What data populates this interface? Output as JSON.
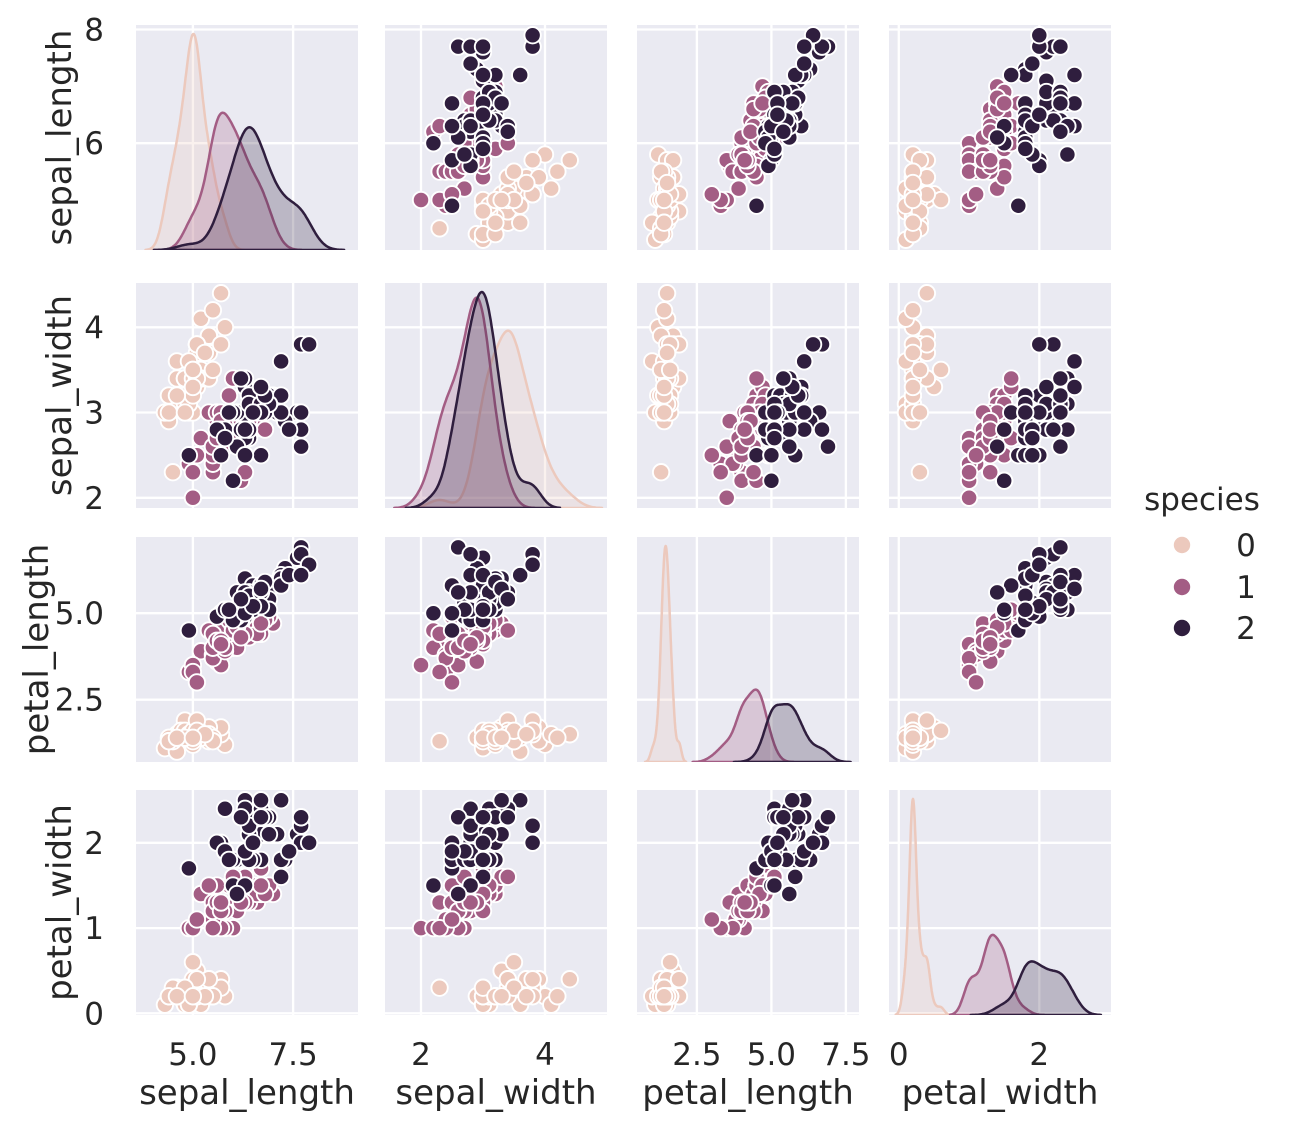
{
  "figure": {
    "description": "Seaborn pairplot of the iris dataset, hue = species, KDE on the diagonal",
    "background": "#ffffff"
  },
  "theme": {
    "axes_background": "#eaeaf2",
    "grid_color": "#ffffff",
    "text_color": "#262626",
    "marker_edge_color": "#ffffff"
  },
  "legend": {
    "title": "species",
    "entries": [
      {
        "label": "0",
        "color": "#ecc9bd"
      },
      {
        "label": "1",
        "color": "#a35d84"
      },
      {
        "label": "2",
        "color": "#2f1e3e"
      }
    ]
  },
  "chart_data": {
    "type": "scatter",
    "subtype": "pairplot",
    "diagonal": "kde",
    "hue": "species",
    "grid": true,
    "legend_position": "right",
    "variables": [
      "sepal_length",
      "sepal_width",
      "petal_length",
      "petal_width"
    ],
    "axes": {
      "sepal_length": {
        "label": "sepal_length",
        "x_range": [
          3.58,
          9.12
        ],
        "y_range": [
          4.12,
          8.08
        ],
        "x_ticks": [
          5.0,
          7.5
        ],
        "x_tick_labels": [
          "5.0",
          "7.5"
        ],
        "y_ticks": [
          6,
          8
        ],
        "y_tick_labels": [
          "6",
          "8"
        ]
      },
      "sepal_width": {
        "label": "sepal_width",
        "x_range": [
          1.42,
          5.0
        ],
        "y_range": [
          1.88,
          4.52
        ],
        "x_ticks": [
          2,
          4
        ],
        "x_tick_labels": [
          "2",
          "4"
        ],
        "y_ticks": [
          2,
          3,
          4
        ],
        "y_tick_labels": [
          "2",
          "3",
          "4"
        ]
      },
      "petal_length": {
        "label": "petal_length",
        "x_range": [
          0.49,
          7.94
        ],
        "y_range": [
          0.7,
          7.2
        ],
        "x_ticks": [
          2.5,
          5.0,
          7.5
        ],
        "x_tick_labels": [
          "2.5",
          "5.0",
          "7.5"
        ],
        "y_ticks": [
          2.5,
          5.0
        ],
        "y_tick_labels": [
          "2.5",
          "5.0"
        ]
      },
      "petal_width": {
        "label": "petal_width",
        "x_range": [
          -0.14,
          3.02
        ],
        "y_range": [
          -0.02,
          2.62
        ],
        "x_ticks": [
          0,
          2
        ],
        "x_tick_labels": [
          "0",
          "2"
        ],
        "y_ticks": [
          0,
          1,
          2
        ],
        "y_tick_labels": [
          "0",
          "1",
          "2"
        ]
      }
    },
    "series": [
      {
        "species": "0",
        "color": "#ecc9bd",
        "data": [
          [
            5.1,
            3.5,
            1.4,
            0.2
          ],
          [
            4.9,
            3.0,
            1.4,
            0.2
          ],
          [
            4.7,
            3.2,
            1.3,
            0.2
          ],
          [
            4.6,
            3.1,
            1.5,
            0.2
          ],
          [
            5.0,
            3.6,
            1.4,
            0.2
          ],
          [
            5.4,
            3.9,
            1.7,
            0.4
          ],
          [
            4.6,
            3.4,
            1.4,
            0.3
          ],
          [
            5.0,
            3.4,
            1.5,
            0.2
          ],
          [
            4.4,
            2.9,
            1.4,
            0.2
          ],
          [
            4.9,
            3.1,
            1.5,
            0.1
          ],
          [
            5.4,
            3.7,
            1.5,
            0.2
          ],
          [
            4.8,
            3.4,
            1.6,
            0.2
          ],
          [
            4.8,
            3.0,
            1.4,
            0.1
          ],
          [
            4.3,
            3.0,
            1.1,
            0.1
          ],
          [
            5.8,
            4.0,
            1.2,
            0.2
          ],
          [
            5.7,
            4.4,
            1.5,
            0.4
          ],
          [
            5.4,
            3.9,
            1.3,
            0.4
          ],
          [
            5.1,
            3.5,
            1.4,
            0.3
          ],
          [
            5.7,
            3.8,
            1.7,
            0.3
          ],
          [
            5.1,
            3.8,
            1.5,
            0.3
          ],
          [
            5.4,
            3.4,
            1.7,
            0.2
          ],
          [
            5.1,
            3.7,
            1.5,
            0.4
          ],
          [
            4.6,
            3.6,
            1.0,
            0.2
          ],
          [
            5.1,
            3.3,
            1.7,
            0.5
          ],
          [
            4.8,
            3.4,
            1.9,
            0.2
          ],
          [
            5.0,
            3.0,
            1.6,
            0.2
          ],
          [
            5.0,
            3.4,
            1.6,
            0.4
          ],
          [
            5.2,
            3.5,
            1.5,
            0.2
          ],
          [
            5.2,
            3.4,
            1.4,
            0.2
          ],
          [
            4.7,
            3.2,
            1.6,
            0.2
          ],
          [
            4.8,
            3.1,
            1.6,
            0.2
          ],
          [
            5.4,
            3.4,
            1.5,
            0.4
          ],
          [
            5.2,
            4.1,
            1.5,
            0.1
          ],
          [
            5.5,
            4.2,
            1.4,
            0.2
          ],
          [
            4.9,
            3.1,
            1.5,
            0.2
          ],
          [
            5.0,
            3.2,
            1.2,
            0.2
          ],
          [
            5.5,
            3.5,
            1.3,
            0.2
          ],
          [
            4.9,
            3.6,
            1.4,
            0.1
          ],
          [
            4.4,
            3.0,
            1.3,
            0.2
          ],
          [
            5.1,
            3.4,
            1.5,
            0.2
          ],
          [
            5.0,
            3.5,
            1.3,
            0.3
          ],
          [
            4.5,
            2.3,
            1.3,
            0.3
          ],
          [
            4.4,
            3.2,
            1.3,
            0.2
          ],
          [
            5.0,
            3.5,
            1.6,
            0.6
          ],
          [
            5.1,
            3.8,
            1.9,
            0.4
          ],
          [
            4.8,
            3.0,
            1.4,
            0.3
          ],
          [
            5.1,
            3.8,
            1.6,
            0.2
          ],
          [
            4.6,
            3.2,
            1.4,
            0.2
          ],
          [
            5.3,
            3.7,
            1.5,
            0.2
          ],
          [
            5.0,
            3.3,
            1.4,
            0.2
          ]
        ]
      },
      {
        "species": "1",
        "color": "#a35d84",
        "data": [
          [
            7.0,
            3.2,
            4.7,
            1.4
          ],
          [
            6.4,
            3.2,
            4.5,
            1.5
          ],
          [
            6.9,
            3.1,
            4.9,
            1.5
          ],
          [
            5.5,
            2.3,
            4.0,
            1.3
          ],
          [
            6.5,
            2.8,
            4.6,
            1.5
          ],
          [
            5.7,
            2.8,
            4.5,
            1.3
          ],
          [
            6.3,
            3.3,
            4.7,
            1.6
          ],
          [
            4.9,
            2.4,
            3.3,
            1.0
          ],
          [
            6.6,
            2.9,
            4.6,
            1.3
          ],
          [
            5.2,
            2.7,
            3.9,
            1.4
          ],
          [
            5.0,
            2.0,
            3.5,
            1.0
          ],
          [
            5.9,
            3.0,
            4.2,
            1.5
          ],
          [
            6.0,
            2.2,
            4.0,
            1.0
          ],
          [
            6.1,
            2.9,
            4.7,
            1.4
          ],
          [
            5.6,
            2.9,
            3.6,
            1.3
          ],
          [
            6.7,
            3.1,
            4.4,
            1.4
          ],
          [
            5.6,
            3.0,
            4.5,
            1.5
          ],
          [
            5.8,
            2.7,
            4.1,
            1.0
          ],
          [
            6.2,
            2.2,
            4.5,
            1.5
          ],
          [
            5.6,
            2.5,
            3.9,
            1.1
          ],
          [
            5.9,
            3.2,
            4.8,
            1.8
          ],
          [
            6.1,
            2.8,
            4.0,
            1.3
          ],
          [
            6.3,
            2.5,
            4.9,
            1.5
          ],
          [
            6.1,
            2.8,
            4.7,
            1.2
          ],
          [
            6.4,
            2.9,
            4.3,
            1.3
          ],
          [
            6.6,
            3.0,
            4.4,
            1.4
          ],
          [
            6.8,
            2.8,
            4.8,
            1.4
          ],
          [
            6.7,
            3.0,
            5.0,
            1.7
          ],
          [
            6.0,
            2.9,
            4.5,
            1.5
          ],
          [
            5.7,
            2.6,
            3.5,
            1.0
          ],
          [
            5.5,
            2.4,
            3.8,
            1.1
          ],
          [
            5.5,
            2.4,
            3.7,
            1.0
          ],
          [
            5.8,
            2.7,
            3.9,
            1.2
          ],
          [
            6.0,
            2.7,
            5.1,
            1.6
          ],
          [
            5.4,
            3.0,
            4.5,
            1.5
          ],
          [
            6.0,
            3.4,
            4.5,
            1.6
          ],
          [
            6.7,
            3.1,
            4.7,
            1.5
          ],
          [
            6.3,
            2.3,
            4.4,
            1.3
          ],
          [
            5.6,
            3.0,
            4.1,
            1.3
          ],
          [
            5.5,
            2.5,
            4.0,
            1.3
          ],
          [
            5.5,
            2.6,
            4.4,
            1.2
          ],
          [
            6.1,
            3.0,
            4.6,
            1.4
          ],
          [
            5.8,
            2.6,
            4.0,
            1.2
          ],
          [
            5.0,
            2.3,
            3.3,
            1.0
          ],
          [
            5.6,
            2.7,
            4.2,
            1.3
          ],
          [
            5.7,
            3.0,
            4.2,
            1.2
          ],
          [
            5.7,
            2.9,
            4.2,
            1.3
          ],
          [
            6.2,
            2.9,
            4.3,
            1.3
          ],
          [
            5.1,
            2.5,
            3.0,
            1.1
          ],
          [
            5.7,
            2.8,
            4.1,
            1.3
          ]
        ]
      },
      {
        "species": "2",
        "color": "#2f1e3e",
        "data": [
          [
            6.3,
            3.3,
            6.0,
            2.5
          ],
          [
            5.8,
            2.7,
            5.1,
            1.9
          ],
          [
            7.1,
            3.0,
            5.9,
            2.1
          ],
          [
            6.3,
            2.9,
            5.6,
            1.8
          ],
          [
            6.5,
            3.0,
            5.8,
            2.2
          ],
          [
            7.6,
            3.0,
            6.6,
            2.1
          ],
          [
            4.9,
            2.5,
            4.5,
            1.7
          ],
          [
            7.3,
            2.9,
            6.3,
            1.8
          ],
          [
            6.7,
            2.5,
            5.8,
            1.8
          ],
          [
            7.2,
            3.6,
            6.1,
            2.5
          ],
          [
            6.5,
            3.2,
            5.1,
            2.0
          ],
          [
            6.4,
            2.7,
            5.3,
            1.9
          ],
          [
            6.8,
            3.0,
            5.5,
            2.1
          ],
          [
            5.7,
            2.5,
            5.0,
            2.0
          ],
          [
            5.8,
            2.8,
            5.1,
            2.4
          ],
          [
            6.4,
            3.2,
            5.3,
            2.3
          ],
          [
            6.5,
            3.0,
            5.5,
            1.8
          ],
          [
            7.7,
            3.8,
            6.7,
            2.2
          ],
          [
            7.7,
            2.6,
            6.9,
            2.3
          ],
          [
            6.0,
            2.2,
            5.0,
            1.5
          ],
          [
            6.9,
            3.2,
            5.7,
            2.3
          ],
          [
            5.6,
            2.8,
            4.9,
            2.0
          ],
          [
            7.7,
            2.8,
            6.7,
            2.0
          ],
          [
            6.3,
            2.7,
            4.9,
            1.8
          ],
          [
            6.7,
            3.3,
            5.7,
            2.1
          ],
          [
            7.2,
            3.2,
            6.0,
            1.8
          ],
          [
            6.2,
            2.8,
            4.8,
            1.8
          ],
          [
            6.1,
            3.0,
            4.9,
            1.8
          ],
          [
            6.4,
            2.8,
            5.6,
            2.1
          ],
          [
            7.2,
            3.0,
            5.8,
            1.6
          ],
          [
            7.4,
            2.8,
            6.1,
            1.9
          ],
          [
            7.9,
            3.8,
            6.4,
            2.0
          ],
          [
            6.4,
            2.8,
            5.6,
            2.2
          ],
          [
            6.3,
            2.8,
            5.1,
            1.5
          ],
          [
            6.1,
            2.6,
            5.6,
            1.4
          ],
          [
            7.7,
            3.0,
            6.1,
            2.3
          ],
          [
            6.3,
            3.4,
            5.6,
            2.4
          ],
          [
            6.4,
            3.1,
            5.5,
            1.8
          ],
          [
            6.0,
            3.0,
            4.8,
            1.8
          ],
          [
            6.9,
            3.1,
            5.4,
            2.1
          ],
          [
            6.7,
            3.1,
            5.6,
            2.4
          ],
          [
            6.9,
            3.1,
            5.1,
            2.3
          ],
          [
            5.8,
            2.7,
            5.1,
            1.9
          ],
          [
            6.8,
            3.2,
            5.9,
            2.3
          ],
          [
            6.7,
            3.3,
            5.7,
            2.5
          ],
          [
            6.7,
            3.0,
            5.2,
            2.3
          ],
          [
            6.3,
            2.5,
            5.0,
            1.9
          ],
          [
            6.5,
            3.0,
            5.2,
            2.0
          ],
          [
            6.2,
            3.4,
            5.4,
            2.3
          ],
          [
            5.9,
            3.0,
            5.1,
            1.8
          ]
        ]
      }
    ]
  }
}
